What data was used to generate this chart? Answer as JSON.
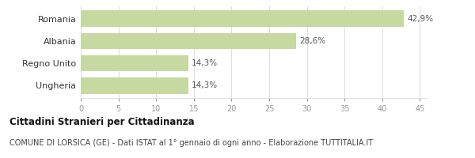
{
  "categories": [
    "Romania",
    "Albania",
    "Regno Unito",
    "Ungheria"
  ],
  "values": [
    42.9,
    28.6,
    14.3,
    14.3
  ],
  "labels": [
    "42,9%",
    "28,6%",
    "14,3%",
    "14,3%"
  ],
  "bar_color": "#c5d9a0",
  "xlim": [
    0,
    46
  ],
  "xticks": [
    0,
    5,
    10,
    15,
    20,
    25,
    30,
    35,
    40,
    45
  ],
  "title_bold": "Cittadini Stranieri per Cittadinanza",
  "subtitle": "COMUNE DI LORSICA (GE) - Dati ISTAT al 1° gennaio di ogni anno - Elaborazione TUTTITALIA.IT",
  "label_fontsize": 7.5,
  "category_fontsize": 8,
  "tick_fontsize": 7,
  "title_fontsize": 8.5,
  "subtitle_fontsize": 7,
  "bar_height": 0.72,
  "background_color": "#ffffff",
  "tick_color": "#999999",
  "grid_color": "#dddddd",
  "label_color": "#555555",
  "category_color": "#333333"
}
